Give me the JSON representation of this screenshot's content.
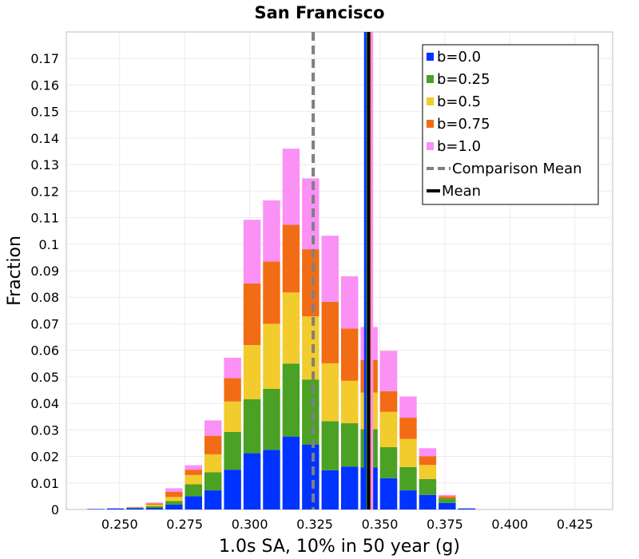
{
  "chart_data": {
    "type": "bar",
    "stacked": true,
    "title": "San Francisco",
    "xlabel": "1.0s SA, 10% in 50 year (g)",
    "ylabel": "Fraction",
    "xlim": [
      0.2295,
      0.4395
    ],
    "ylim": [
      0,
      0.18
    ],
    "x_ticks": [
      "0.250",
      "0.275",
      "0.300",
      "0.325",
      "0.350",
      "0.375",
      "0.400",
      "0.425"
    ],
    "y_ticks": [
      "0",
      "0.01",
      "0.02",
      "0.03",
      "0.04",
      "0.05",
      "0.06",
      "0.07",
      "0.08",
      "0.09",
      "0.1",
      "0.11",
      "0.12",
      "0.13",
      "0.14",
      "0.15",
      "0.16",
      "0.17"
    ],
    "bin_width": 0.0075,
    "x": [
      0.2334,
      0.2409,
      0.2484,
      0.2559,
      0.2634,
      0.2709,
      0.2784,
      0.2859,
      0.2934,
      0.3009,
      0.3084,
      0.3159,
      0.3234,
      0.3309,
      0.3384,
      0.3459,
      0.3534,
      0.3609,
      0.3684,
      0.3759,
      0.3834,
      0.3909,
      0.3984,
      0.4059,
      0.4134,
      0.4209,
      0.4284
    ],
    "series": [
      {
        "name": "b=0.0",
        "color": "#0033ff",
        "values": [
          0.0,
          0.0002,
          0.0004,
          0.0005,
          0.0006,
          0.0018,
          0.005,
          0.0072,
          0.015,
          0.0212,
          0.0225,
          0.0275,
          0.0245,
          0.0148,
          0.0162,
          0.0158,
          0.0118,
          0.0072,
          0.0055,
          0.0025,
          0.0004,
          0.0,
          0.0,
          0.0,
          0.0,
          0.0,
          0.0
        ]
      },
      {
        "name": "b=0.25",
        "color": "#4aa124",
        "values": [
          0.0,
          0.0,
          0.0,
          0.0002,
          0.0006,
          0.0014,
          0.0045,
          0.0068,
          0.0142,
          0.0204,
          0.023,
          0.0275,
          0.0245,
          0.0185,
          0.0163,
          0.0145,
          0.0117,
          0.0088,
          0.006,
          0.0017,
          0.0,
          0.0,
          0.0,
          0.0,
          0.0,
          0.0,
          0.0
        ]
      },
      {
        "name": "b=0.5",
        "color": "#f2cb2c",
        "values": [
          0.0,
          0.0,
          0.0,
          0.0001,
          0.0006,
          0.0015,
          0.0035,
          0.0068,
          0.0115,
          0.0204,
          0.0245,
          0.0268,
          0.0238,
          0.0218,
          0.016,
          0.0138,
          0.0133,
          0.0106,
          0.0053,
          0.0,
          0.0,
          0.0,
          0.0,
          0.0,
          0.0,
          0.0,
          0.0
        ]
      },
      {
        "name": "b=0.75",
        "color": "#f26c15",
        "values": [
          0.0,
          0.0,
          0.0,
          0.0001,
          0.0005,
          0.002,
          0.002,
          0.007,
          0.0088,
          0.0232,
          0.0235,
          0.0255,
          0.0253,
          0.0232,
          0.0197,
          0.0122,
          0.0078,
          0.008,
          0.0033,
          0.0008,
          0.0,
          0.0,
          0.0,
          0.0,
          0.0,
          0.0,
          0.0
        ]
      },
      {
        "name": "b=1.0",
        "color": "#fb90f5",
        "values": [
          0.0,
          0.0,
          0.0,
          0.0001,
          0.0003,
          0.0013,
          0.0017,
          0.0058,
          0.0077,
          0.024,
          0.023,
          0.0287,
          0.0267,
          0.0249,
          0.0197,
          0.0125,
          0.0152,
          0.008,
          0.003,
          0.0005,
          0.0,
          0.0,
          0.0,
          0.0,
          0.0,
          0.0,
          0.0
        ]
      }
    ],
    "mean_lines": [
      {
        "name": "b=0.0",
        "value": 0.3444,
        "color": "#0033ff"
      },
      {
        "name": "b=0.25",
        "value": 0.3453,
        "color": "#4aa124"
      },
      {
        "name": "b=0.5",
        "value": 0.3459,
        "color": "#f2cb2c"
      },
      {
        "name": "b=0.75",
        "value": 0.3465,
        "color": "#f26c15"
      },
      {
        "name": "b=1.0",
        "value": 0.347,
        "color": "#fb90f5"
      }
    ],
    "mean": {
      "name": "Mean",
      "value": 0.3457,
      "color": "#000000"
    },
    "comparison_mean": {
      "name": "Comparison Mean",
      "value": 0.3244,
      "color": "#808080"
    },
    "legend": {
      "placement": "top-right",
      "entries": [
        {
          "label": "b=0.0",
          "kind": "swatch",
          "color": "#0033ff"
        },
        {
          "label": "b=0.25",
          "kind": "swatch",
          "color": "#4aa124"
        },
        {
          "label": "b=0.5",
          "kind": "swatch",
          "color": "#f2cb2c"
        },
        {
          "label": "b=0.75",
          "kind": "swatch",
          "color": "#f26c15"
        },
        {
          "label": "b=1.0",
          "kind": "swatch",
          "color": "#fb90f5"
        },
        {
          "label": "Comparison Mean",
          "kind": "dashed-line",
          "color": "#808080"
        },
        {
          "label": "Mean",
          "kind": "solid-line",
          "color": "#000000"
        }
      ]
    },
    "grid": true
  }
}
